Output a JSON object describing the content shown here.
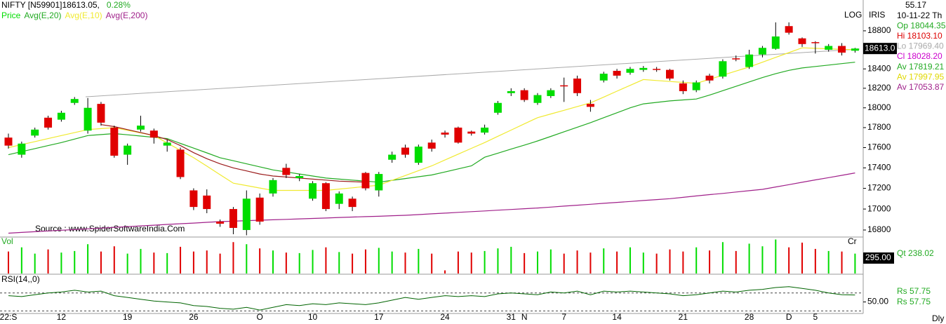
{
  "chart_data": {
    "type": "candlestick",
    "title": "NIFTY [N59901]18613.05,",
    "change": "0.28%",
    "price_label": "Price",
    "source": "Source : www.SpiderSoftwareIndia.Com",
    "scale_label": "LOG",
    "brand": "IRIS",
    "period": "Dly",
    "log": true,
    "up_color": "#00dd00",
    "down_color": "#e00000",
    "info": [
      {
        "text": "55.17",
        "color": "#000000"
      },
      {
        "text": "10-11-22 Th",
        "color": "#000000"
      },
      {
        "text": "Op 18044.35",
        "color": "#22aa22"
      },
      {
        "text": "Hi 18103.10",
        "color": "#dd0000"
      },
      {
        "text": "Lo 17969.40",
        "color": "#aaaaaa"
      },
      {
        "text": "Cl 18028.20",
        "color": "#cc00cc"
      },
      {
        "text": "Av 17819.21",
        "color": "#22aa22"
      },
      {
        "text": "Av 17997.95",
        "color": "#e0d800"
      },
      {
        "text": "Av 17053.87",
        "color": "#a0208a"
      }
    ],
    "categories": [
      "22:S",
      null,
      null,
      null,
      "12",
      null,
      null,
      null,
      null,
      "19",
      null,
      null,
      null,
      null,
      "26",
      null,
      null,
      null,
      null,
      "O",
      null,
      null,
      null,
      "10",
      null,
      null,
      null,
      null,
      "17",
      null,
      null,
      null,
      null,
      "24",
      null,
      null,
      null,
      null,
      "31",
      "N",
      null,
      null,
      "7",
      null,
      null,
      null,
      "14",
      null,
      null,
      null,
      null,
      "21",
      null,
      null,
      null,
      null,
      "28",
      null,
      null,
      "D",
      null,
      "5",
      null,
      null,
      null
    ],
    "open": [
      17700,
      17530,
      17720,
      17900,
      17880,
      18050,
      17770,
      18040,
      17800,
      17530,
      17780,
      17770,
      17620,
      17580,
      17180,
      17130,
      16880,
      17000,
      16800,
      17110,
      17150,
      17400,
      17300,
      17100,
      17250,
      17050,
      17100,
      17350,
      17180,
      17480,
      17600,
      17450,
      17650,
      17750,
      17800,
      17760,
      17750,
      17950,
      18150,
      18180,
      18050,
      18120,
      18230,
      18300,
      18040,
      18280,
      18380,
      18360,
      18390,
      18400,
      18390,
      18250,
      18180,
      18330,
      18320,
      18510,
      18420,
      18550,
      18610,
      18850,
      18720,
      18680,
      18600,
      18640,
      18590
    ],
    "high": [
      17740,
      17660,
      17800,
      17920,
      17970,
      18110,
      18100,
      18060,
      17820,
      17640,
      17920,
      17790,
      17680,
      17600,
      17200,
      17190,
      16900,
      17020,
      17180,
      17150,
      17300,
      17440,
      17340,
      17270,
      17260,
      17170,
      17120,
      17360,
      17360,
      17560,
      17630,
      17630,
      17680,
      17770,
      17810,
      17770,
      17830,
      18070,
      18200,
      18200,
      18150,
      18200,
      18310,
      18330,
      18080,
      18370,
      18400,
      18420,
      18430,
      18420,
      18400,
      18280,
      18280,
      18350,
      18500,
      18540,
      18600,
      18640,
      18890,
      18890,
      18730,
      18690,
      18660,
      18670,
      18620
    ],
    "low": [
      17590,
      17500,
      17700,
      17780,
      17860,
      18030,
      17740,
      17820,
      17500,
      17430,
      17760,
      17640,
      17560,
      17290,
      16990,
      16960,
      16830,
      16760,
      16750,
      16850,
      17120,
      17300,
      17270,
      17080,
      16980,
      17000,
      16980,
      17180,
      17120,
      17450,
      17500,
      17430,
      17560,
      17700,
      17640,
      17720,
      17730,
      17930,
      18120,
      18060,
      18030,
      18100,
      18060,
      18120,
      17960,
      18260,
      18300,
      18340,
      18370,
      18370,
      18280,
      18140,
      18160,
      18250,
      18300,
      18480,
      18400,
      18520,
      18600,
      18760,
      18630,
      18560,
      18580,
      18540,
      18570
    ],
    "close": [
      17620,
      17640,
      17780,
      17800,
      17950,
      18090,
      18000,
      17850,
      17520,
      17620,
      17820,
      17700,
      17650,
      17310,
      17020,
      17000,
      16860,
      16820,
      17100,
      16880,
      17280,
      17330,
      17320,
      17250,
      17000,
      17150,
      17020,
      17200,
      17340,
      17530,
      17530,
      17610,
      17590,
      17730,
      17650,
      17740,
      17800,
      18050,
      18170,
      18080,
      18130,
      18180,
      18220,
      18150,
      18010,
      18350,
      18330,
      18400,
      18410,
      18390,
      18300,
      18170,
      18260,
      18280,
      18480,
      18500,
      18550,
      18620,
      18740,
      18780,
      18660,
      18670,
      18640,
      18570,
      18613
    ],
    "series": [
      {
        "name": "Avg(E,20)",
        "color": "#22aa22",
        "values": [
          17530,
          17560,
          17590,
          17620,
          17650,
          17685,
          17720,
          17730,
          17740,
          17728,
          17715,
          17703,
          17690,
          17642,
          17595,
          17548,
          17500,
          17470,
          17440,
          17410,
          17380,
          17360,
          17340,
          17320,
          17300,
          17290,
          17280,
          17270,
          17260,
          17278,
          17295,
          17313,
          17330,
          17360,
          17390,
          17420,
          17505,
          17545,
          17585,
          17625,
          17666,
          17712,
          17758,
          17804,
          17850,
          17900,
          17950,
          18000,
          18040,
          18055,
          18070,
          18080,
          18090,
          18130,
          18175,
          18220,
          18265,
          18310,
          18350,
          18385,
          18410,
          18425,
          18440,
          18455,
          18470
        ]
      },
      {
        "name": "Avg(E,10)",
        "color": "#f0ea30",
        "values": [
          17600,
          17630,
          17660,
          17690,
          17720,
          17750,
          17780,
          17790,
          17800,
          17773,
          17747,
          17720,
          17647,
          17573,
          17500,
          17417,
          17333,
          17250,
          17227,
          17203,
          17180,
          17180,
          17180,
          17180,
          17180,
          17193,
          17205,
          17218,
          17230,
          17278,
          17325,
          17373,
          17420,
          17478,
          17535,
          17593,
          17650,
          17713,
          17775,
          17838,
          17900,
          17938,
          17975,
          18013,
          18050,
          18110,
          18170,
          18230,
          18290,
          18280,
          18270,
          18260,
          18250,
          18293,
          18335,
          18378,
          18420,
          18470,
          18520,
          18570,
          18620,
          18615,
          18610,
          18605,
          18600
        ]
      },
      {
        "name": "Avg(E,200)",
        "color": "#a0208a",
        "values": [
          16770,
          16777,
          16784,
          16791,
          16798,
          16804,
          16811,
          16818,
          16825,
          16832,
          16839,
          16846,
          16853,
          16860,
          16866,
          16873,
          16880,
          16884,
          16889,
          16893,
          16897,
          16901,
          16906,
          16910,
          16914,
          16919,
          16923,
          16927,
          16931,
          16936,
          16940,
          16947,
          16954,
          16961,
          16968,
          16975,
          16982,
          16989,
          16996,
          17003,
          17010,
          17019,
          17028,
          17037,
          17046,
          17055,
          17064,
          17073,
          17082,
          17091,
          17100,
          17113,
          17126,
          17139,
          17151,
          17164,
          17177,
          17190,
          17213,
          17236,
          17259,
          17282,
          17304,
          17327,
          17350
        ]
      },
      {
        "color": "#9b1c1c",
        "values": [
          null,
          null,
          null,
          null,
          null,
          null,
          null,
          17830,
          17810,
          17780,
          17750,
          17720,
          17680,
          17620,
          17550,
          17490,
          17440,
          17400,
          17370,
          17340,
          17320,
          17310,
          17300,
          17290,
          17280,
          17270,
          17265,
          17260,
          null,
          null,
          null,
          null,
          null,
          null,
          null,
          null,
          null,
          null,
          null,
          null,
          null,
          null,
          null,
          null,
          null,
          null,
          null,
          null,
          null,
          null,
          null,
          null,
          null,
          null,
          null,
          null,
          null,
          null,
          null,
          null,
          null,
          null,
          null,
          null,
          null
        ]
      }
    ],
    "ylim": [
      16740,
      19130
    ],
    "yticks": [
      16800,
      17000,
      17200,
      17400,
      17600,
      17800,
      18000,
      18200,
      18400,
      18600,
      18800
    ],
    "last_price": {
      "value": 18613.05,
      "label": "18613.0"
    },
    "volume": {
      "label": "Vol",
      "corner": "Cr",
      "info": "Qt    238.02",
      "ylim": [
        0,
        670
      ],
      "yticks": [
        {
          "value": 295,
          "label": "295.00"
        }
      ],
      "values": [
        420,
        500,
        380,
        460,
        400,
        430,
        560,
        420,
        520,
        380,
        470,
        400,
        390,
        510,
        420,
        440,
        380,
        600,
        560,
        480,
        440,
        400,
        390,
        450,
        500,
        410,
        380,
        460,
        490,
        420,
        400,
        470,
        380,
        60,
        420,
        400,
        430,
        480,
        510,
        390,
        420,
        460,
        380,
        440,
        400,
        480,
        420,
        500,
        400,
        380,
        460,
        420,
        500,
        440,
        600,
        430,
        570,
        520,
        650,
        500,
        590,
        470,
        430,
        420,
        380
      ]
    },
    "rsi": {
      "label": "RSI(14,,0)",
      "color": "#006400",
      "info": [
        "Rs      57.75",
        "Rs      57.75"
      ],
      "ylim": [
        38,
        80
      ],
      "yticks": [
        {
          "value": 50,
          "label": "50.00"
        }
      ],
      "levels": [
        40,
        60
      ],
      "values": [
        57,
        56,
        58,
        60,
        61,
        63,
        61,
        62,
        57,
        55,
        53,
        51,
        50,
        49,
        46,
        45,
        43,
        42,
        44,
        41,
        44,
        47,
        46,
        48,
        47,
        49,
        48,
        47,
        49,
        52,
        55,
        53,
        55,
        57,
        56,
        57,
        56,
        59,
        60,
        59,
        58,
        61,
        60,
        62,
        58,
        62,
        61,
        62,
        61,
        60,
        59,
        57,
        58,
        60,
        62,
        61,
        63,
        64,
        66,
        67,
        65,
        63,
        60,
        58,
        57.75
      ]
    }
  }
}
